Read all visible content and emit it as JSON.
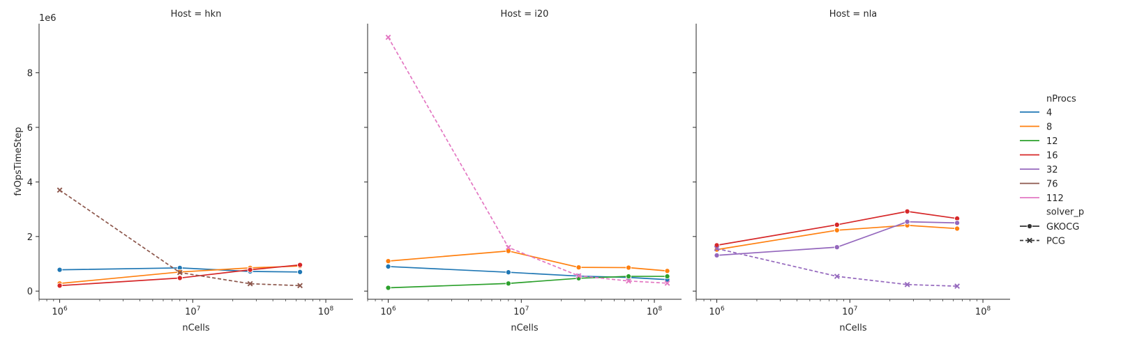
{
  "chart_data": {
    "type": "line",
    "ylabel": "fvOpsTimeStep",
    "xlabel": "nCells",
    "y_offset_label": "1e6",
    "x_scale": "log",
    "y_unit": 1000000,
    "xlim": [
      700000,
      160000000
    ],
    "ylim": [
      -300000,
      9800000
    ],
    "x_ticks": [
      1000000,
      10000000,
      100000000
    ],
    "x_tick_labels": [
      {
        "base": "10",
        "exp": "6"
      },
      {
        "base": "10",
        "exp": "7"
      },
      {
        "base": "10",
        "exp": "8"
      }
    ],
    "y_ticks": [
      0,
      2000000,
      4000000,
      6000000,
      8000000
    ],
    "y_tick_labels": [
      "0",
      "2",
      "4",
      "6",
      "8"
    ],
    "grid": false,
    "legend": {
      "placement": "right",
      "hue_title": "nProcs",
      "hue": [
        {
          "label": "4",
          "color": "#1f77b4"
        },
        {
          "label": "8",
          "color": "#ff7f0e"
        },
        {
          "label": "12",
          "color": "#2ca02c"
        },
        {
          "label": "16",
          "color": "#d62728"
        },
        {
          "label": "32",
          "color": "#9467bd"
        },
        {
          "label": "76",
          "color": "#8c564b"
        },
        {
          "label": "112",
          "color": "#e377c2"
        }
      ],
      "style_title": "solver_p",
      "style": [
        {
          "label": "GKOCG",
          "marker": "circle",
          "dash": "solid"
        },
        {
          "label": "PCG",
          "marker": "x",
          "dash": "dashed"
        }
      ]
    },
    "panels": [
      {
        "title": "Host = hkn",
        "series": [
          {
            "nProcs": "4",
            "solver": "GKOCG",
            "color": "#1f77b4",
            "x": [
              1000000,
              8000000,
              27000000,
              64000000
            ],
            "y": [
              780000,
              850000,
              720000,
              700000
            ]
          },
          {
            "nProcs": "8",
            "solver": "GKOCG",
            "color": "#ff7f0e",
            "x": [
              1000000,
              8000000,
              27000000,
              64000000
            ],
            "y": [
              280000,
              700000,
              850000,
              920000
            ]
          },
          {
            "nProcs": "16",
            "solver": "GKOCG",
            "color": "#d62728",
            "x": [
              1000000,
              8000000,
              27000000,
              64000000
            ],
            "y": [
              200000,
              480000,
              780000,
              960000
            ]
          },
          {
            "nProcs": "76",
            "solver": "PCG",
            "color": "#8c564b",
            "x": [
              1000000,
              8000000,
              27000000,
              64000000
            ],
            "y": [
              3700000,
              680000,
              270000,
              200000
            ]
          }
        ]
      },
      {
        "title": "Host = i20",
        "series": [
          {
            "nProcs": "4",
            "solver": "GKOCG",
            "color": "#1f77b4",
            "x": [
              1000000,
              8000000,
              27000000,
              64000000,
              125000000
            ],
            "y": [
              900000,
              690000,
              550000,
              500000,
              420000
            ]
          },
          {
            "nProcs": "8",
            "solver": "GKOCG",
            "color": "#ff7f0e",
            "x": [
              1000000,
              8000000,
              27000000,
              64000000,
              125000000
            ],
            "y": [
              1100000,
              1470000,
              870000,
              860000,
              740000
            ]
          },
          {
            "nProcs": "12",
            "solver": "GKOCG",
            "color": "#2ca02c",
            "x": [
              1000000,
              8000000,
              27000000,
              64000000,
              125000000
            ],
            "y": [
              120000,
              280000,
              470000,
              540000,
              540000
            ]
          },
          {
            "nProcs": "112",
            "solver": "PCG",
            "color": "#e377c2",
            "x": [
              1000000,
              8000000,
              27000000,
              64000000,
              125000000
            ],
            "y": [
              9300000,
              1600000,
              560000,
              370000,
              290000
            ]
          }
        ]
      },
      {
        "title": "Host = nla",
        "series": [
          {
            "nProcs": "8",
            "solver": "GKOCG",
            "color": "#ff7f0e",
            "x": [
              1000000,
              8000000,
              27000000,
              64000000
            ],
            "y": [
              1520000,
              2230000,
              2410000,
              2290000
            ]
          },
          {
            "nProcs": "16",
            "solver": "GKOCG",
            "color": "#d62728",
            "x": [
              1000000,
              8000000,
              27000000,
              64000000
            ],
            "y": [
              1680000,
              2430000,
              2920000,
              2660000
            ]
          },
          {
            "nProcs": "32",
            "solver": "GKOCG",
            "color": "#9467bd",
            "x": [
              1000000,
              8000000,
              27000000,
              64000000
            ],
            "y": [
              1310000,
              1610000,
              2540000,
              2500000
            ]
          },
          {
            "nProcs": "32",
            "solver": "PCG",
            "color": "#9467bd",
            "x": [
              1000000,
              8000000,
              27000000,
              64000000
            ],
            "y": [
              1560000,
              540000,
              240000,
              180000
            ]
          }
        ]
      }
    ]
  }
}
